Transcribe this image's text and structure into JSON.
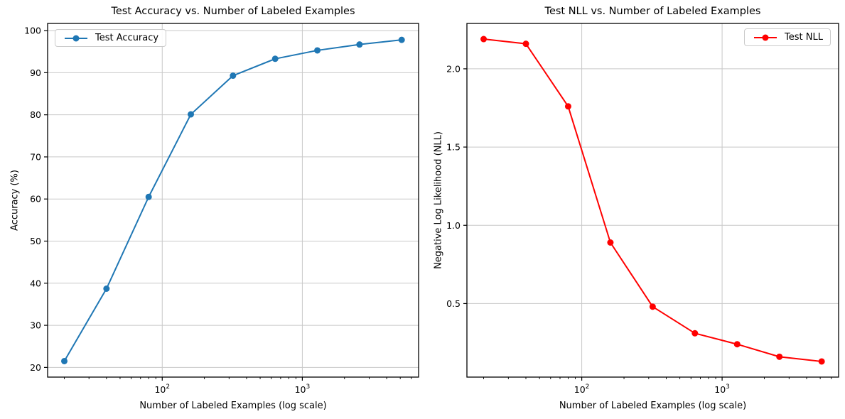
{
  "figure": {
    "background_color": "#ffffff",
    "grid_color": "#c8c8c8",
    "spine_color": "#000000",
    "text_color": "#000000"
  },
  "chart_data": [
    {
      "type": "line",
      "title": "Test Accuracy vs. Number of Labeled Examples",
      "xlabel": "Number of Labeled Examples (log scale)",
      "ylabel": "Accuracy (%)",
      "legend": {
        "label": "Test Accuracy",
        "position": "upper left"
      },
      "line_color": "#1f77b4",
      "marker": "circle",
      "xscale": "log",
      "grid": true,
      "x": [
        20,
        40,
        80,
        160,
        320,
        640,
        1280,
        2560,
        5120
      ],
      "y": [
        21.5,
        38.7,
        60.5,
        80.1,
        89.3,
        93.3,
        95.3,
        96.7,
        97.8
      ],
      "xlim": [
        15.2,
        6760
      ],
      "ylim": [
        17.7,
        101.7
      ],
      "yticks": [
        20,
        30,
        40,
        50,
        60,
        70,
        80,
        90,
        100
      ],
      "ytick_labels": [
        "20",
        "30",
        "40",
        "50",
        "60",
        "70",
        "80",
        "90",
        "100"
      ],
      "xticks": [
        {
          "value": 100,
          "label_base": "10",
          "label_exp": "2"
        },
        {
          "value": 1000,
          "label_base": "10",
          "label_exp": "3"
        }
      ]
    },
    {
      "type": "line",
      "title": "Test NLL vs. Number of Labeled Examples",
      "xlabel": "Number of Labeled Examples (log scale)",
      "ylabel": "Negative Log Likelihood (NLL)",
      "legend": {
        "label": "Test NLL",
        "position": "upper right"
      },
      "line_color": "#ff0000",
      "marker": "circle",
      "xscale": "log",
      "grid": true,
      "x": [
        20,
        40,
        80,
        160,
        320,
        640,
        1280,
        2560,
        5120
      ],
      "y": [
        2.19,
        2.16,
        1.76,
        0.89,
        0.48,
        0.31,
        0.24,
        0.16,
        0.13
      ],
      "xlim": [
        15.2,
        6760
      ],
      "ylim": [
        0.03,
        2.29
      ],
      "yticks": [
        0.5,
        1.0,
        1.5,
        2.0
      ],
      "ytick_labels": [
        "0.5",
        "1.0",
        "1.5",
        "2.0"
      ],
      "xticks": [
        {
          "value": 100,
          "label_base": "10",
          "label_exp": "2"
        },
        {
          "value": 1000,
          "label_base": "10",
          "label_exp": "3"
        }
      ]
    }
  ]
}
